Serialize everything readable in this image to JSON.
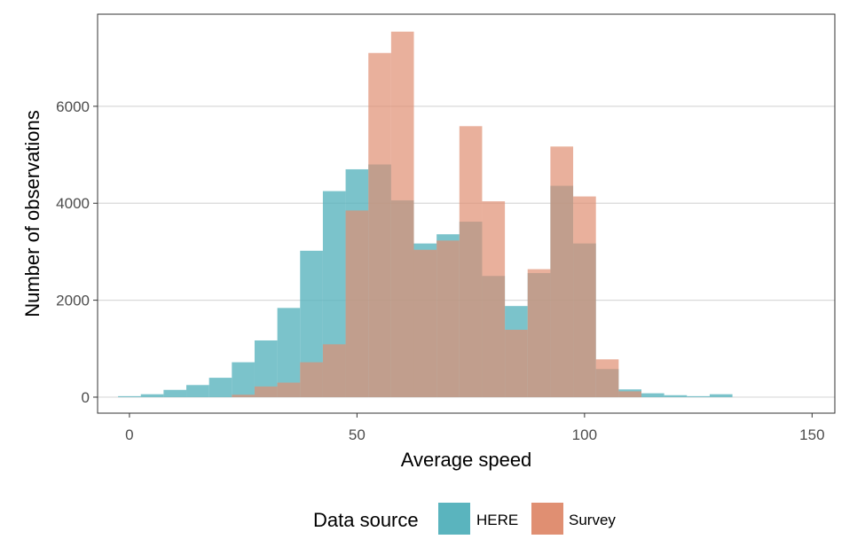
{
  "chart_data": {
    "type": "bar",
    "subtype": "overlapping-histogram",
    "xlabel": "Average speed",
    "ylabel": "Number of observations",
    "xlim": [
      -7,
      155
    ],
    "ylim": [
      -330,
      7900
    ],
    "x_ticks": [
      0,
      50,
      100,
      150
    ],
    "y_ticks": [
      0,
      2000,
      4000,
      6000
    ],
    "grid": "horizontal",
    "bin_width": 5,
    "bin_centers": [
      0,
      5,
      10,
      15,
      20,
      25,
      30,
      35,
      40,
      45,
      50,
      55,
      60,
      65,
      70,
      75,
      80,
      85,
      90,
      95,
      100,
      105,
      110,
      115,
      120,
      125,
      130
    ],
    "series": [
      {
        "name": "HERE",
        "color": "#5AB4BE",
        "values": [
          20,
          60,
          150,
          250,
          400,
          720,
          1170,
          1840,
          3020,
          4250,
          4700,
          4800,
          4060,
          3170,
          3360,
          3620,
          2500,
          1880,
          2560,
          4360,
          3170,
          580,
          160,
          80,
          40,
          20,
          60
        ]
      },
      {
        "name": "Survey",
        "color": "#E08F72",
        "values": [
          0,
          0,
          0,
          0,
          0,
          50,
          220,
          300,
          720,
          1090,
          3850,
          7100,
          7540,
          3040,
          3230,
          5590,
          4040,
          1390,
          2640,
          5170,
          4140,
          780,
          120,
          0,
          0,
          0,
          0
        ]
      }
    ],
    "legend": {
      "title": "Data source",
      "position": "bottom",
      "items": [
        "HERE",
        "Survey"
      ]
    },
    "colors": {
      "here": "#5AB4BE",
      "survey": "#E08F72",
      "overlap": "#A08070",
      "grid": "#d9d9d9",
      "panel_border": "#333333"
    }
  }
}
